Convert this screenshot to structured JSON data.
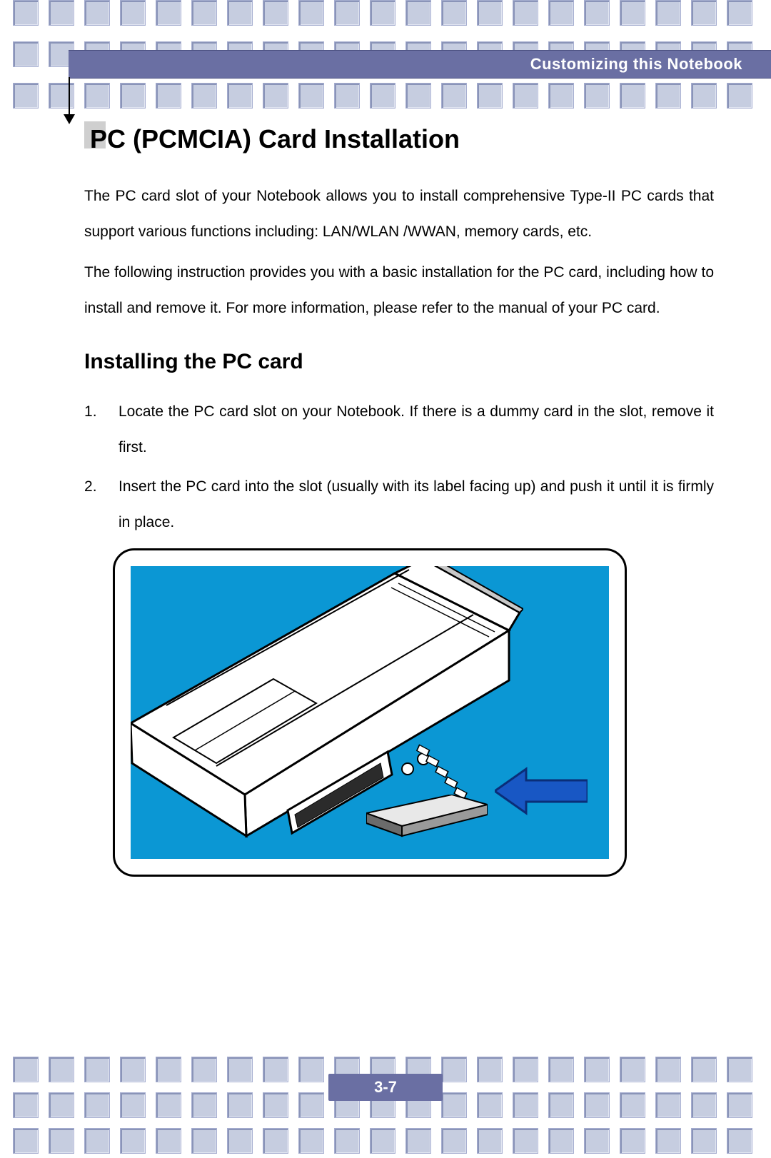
{
  "header": {
    "chapter_title": "Customizing this Notebook",
    "bar_color": "#6a6fa3",
    "text_color": "#ffffff"
  },
  "title": "PC (PCMCIA) Card Installation",
  "intro_paragraphs": [
    "The PC card slot of your Notebook allows you to install comprehensive Type-II PC cards that support various functions including:  LAN/WLAN /WWAN, memory cards, etc.",
    "The following instruction provides you with a basic installation for the PC card, including how to install and remove it.  For more information, please refer to the manual of your PC card."
  ],
  "subheading": "Installing the PC card",
  "steps": [
    "Locate the PC card slot on your Notebook.  If there is a dummy card in the slot, remove it first.",
    "Insert the PC card into the slot (usually with its label facing up) and push it until it is firmly in place."
  ],
  "figure": {
    "type": "infographic",
    "description": "Line-art illustration of a notebook side view with a PC card being inserted into the PCMCIA slot; a solid blue arrow points toward the slot indicating insertion direction.",
    "background_color": "#0b97d4",
    "frame_border_color": "#000000",
    "frame_border_radius": 30,
    "arrow_color": "#1857c4",
    "arrow_outline": "#0a2e78",
    "laptop_stroke": "#000000",
    "laptop_fill": "#ffffff",
    "card_fill_top": "#e8e8e8",
    "card_fill_side": "#6b6b6b"
  },
  "page_number": "3-7",
  "decor": {
    "square_fill": "#c6cde0",
    "square_border": "#a6aed0",
    "heading_marker": "#cfcfcf"
  },
  "typography": {
    "title_fontsize": 36,
    "subhead_fontsize": 30,
    "body_fontsize": 21,
    "line_height": 2.36,
    "font_family": "Arial"
  }
}
